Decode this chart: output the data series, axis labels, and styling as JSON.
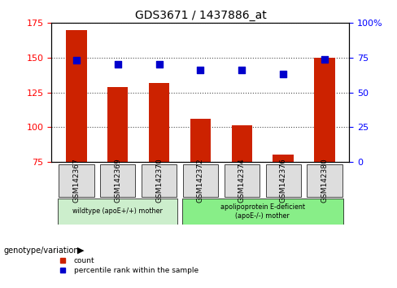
{
  "title": "GDS3671 / 1437886_at",
  "samples": [
    "GSM142367",
    "GSM142369",
    "GSM142370",
    "GSM142372",
    "GSM142374",
    "GSM142376",
    "GSM142380"
  ],
  "bar_values": [
    170,
    129,
    132,
    106,
    101,
    80,
    150
  ],
  "bar_base": 75,
  "percentile_values": [
    73,
    70,
    70,
    66,
    66,
    63,
    74
  ],
  "ylim_left": [
    75,
    175
  ],
  "ylim_right": [
    0,
    100
  ],
  "yticks_left": [
    75,
    100,
    125,
    150,
    175
  ],
  "yticks_right": [
    0,
    25,
    50,
    75,
    100
  ],
  "bar_color": "#cc2200",
  "percentile_color": "#0000cc",
  "grid_color": "black",
  "group1_count": 3,
  "group2_count": 4,
  "group1_label": "wildtype (apoE+/+) mother",
  "group2_label": "apolipoprotein E-deficient\n(apoE-/-) mother",
  "group1_color": "#cceecc",
  "group2_color": "#88ee88",
  "genotype_label": "genotype/variation",
  "legend_count_label": "count",
  "legend_pct_label": "percentile rank within the sample",
  "bar_width": 0.5,
  "bg_color": "#ffffff",
  "xticklabel_bg": "#dddddd"
}
